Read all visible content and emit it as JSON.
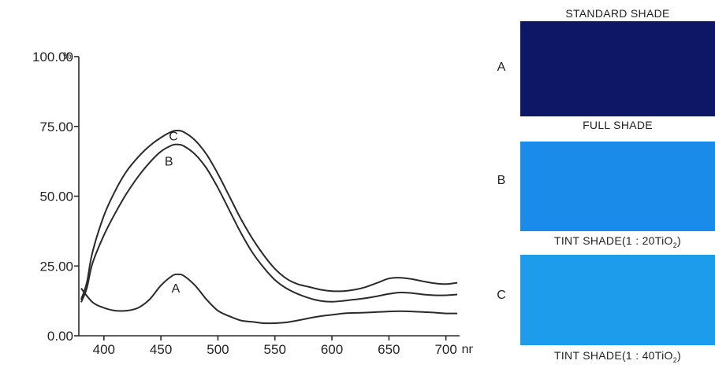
{
  "chart_data": {
    "type": "line",
    "title": "",
    "xlabel": "",
    "ylabel": "",
    "x_unit": "nm",
    "y_unit": "%",
    "xlim": [
      378,
      712
    ],
    "ylim": [
      0,
      100
    ],
    "x_ticks": [
      "400",
      "450",
      "500",
      "550",
      "600",
      "650",
      "700"
    ],
    "x_tick_values": [
      400,
      450,
      500,
      550,
      600,
      650,
      700
    ],
    "y_ticks": [
      "0.00",
      "25.00",
      "50.00",
      "75.00",
      "100.00"
    ],
    "y_tick_values": [
      0,
      25,
      50,
      75,
      100
    ],
    "grid": false,
    "series": [
      {
        "name": "A",
        "x": [
          380,
          390,
          400,
          410,
          420,
          430,
          440,
          450,
          460,
          465,
          470,
          480,
          490,
          500,
          510,
          520,
          530,
          540,
          550,
          560,
          570,
          580,
          590,
          600,
          610,
          620,
          630,
          640,
          650,
          660,
          670,
          680,
          690,
          700,
          710
        ],
        "y": [
          17,
          12,
          10,
          9,
          9,
          10,
          13,
          18,
          21.5,
          22,
          21.5,
          18,
          13,
          9,
          7,
          5.5,
          5,
          4.5,
          4.5,
          4.8,
          5.5,
          6.3,
          7,
          7.5,
          8,
          8.2,
          8.3,
          8.5,
          8.7,
          8.8,
          8.7,
          8.5,
          8.3,
          8,
          8
        ]
      },
      {
        "name": "B",
        "x": [
          380,
          385,
          390,
          400,
          410,
          420,
          430,
          440,
          450,
          460,
          465,
          470,
          480,
          490,
          500,
          510,
          520,
          530,
          540,
          550,
          560,
          570,
          580,
          590,
          600,
          610,
          620,
          630,
          640,
          650,
          660,
          670,
          680,
          690,
          700,
          710
        ],
        "y": [
          12,
          17,
          26,
          36,
          44,
          51,
          57,
          62,
          66,
          68.3,
          68.5,
          68,
          65,
          60,
          53,
          45,
          37,
          30,
          24.5,
          20,
          17,
          15,
          13.5,
          12.5,
          12.2,
          12.5,
          13,
          13.5,
          14.2,
          15,
          15.5,
          15.3,
          14.8,
          14.5,
          14.5,
          14.8
        ]
      },
      {
        "name": "C",
        "x": [
          380,
          385,
          390,
          400,
          410,
          420,
          430,
          440,
          450,
          460,
          465,
          470,
          480,
          490,
          500,
          510,
          520,
          530,
          540,
          550,
          560,
          570,
          580,
          590,
          600,
          610,
          620,
          630,
          640,
          650,
          660,
          670,
          680,
          690,
          700,
          710
        ],
        "y": [
          13,
          19,
          30,
          43,
          52,
          59,
          64,
          68,
          71,
          73.2,
          73.5,
          73,
          70,
          65,
          58,
          50,
          42,
          35,
          29,
          24,
          20.5,
          18.5,
          17.5,
          16.5,
          16,
          16,
          16.5,
          17.5,
          19,
          20.5,
          20.8,
          20.3,
          19.5,
          18.8,
          18.5,
          19
        ]
      }
    ],
    "curve_labels": [
      {
        "text": "A",
        "x": 463,
        "y": 15.5
      },
      {
        "text": "B",
        "x": 457,
        "y": 61
      },
      {
        "text": "C",
        "x": 461,
        "y": 70
      }
    ]
  },
  "swatches": [
    {
      "letter": "A",
      "color": "#0d1766",
      "caption_above": "STANDARD SHADE",
      "caption_prefix": "",
      "caption_sub": "",
      "caption_suffix": ""
    },
    {
      "letter": "B",
      "color": "#1a8be8",
      "caption_above": "FULL SHADE",
      "caption_prefix": "TINT SHADE(1 : 20TiO",
      "caption_sub": "2",
      "caption_suffix": ")"
    },
    {
      "letter": "C",
      "color": "#1e9cec",
      "caption_above": "",
      "caption_prefix": "TINT SHADE(1 : 40TiO",
      "caption_sub": "2",
      "caption_suffix": ")"
    }
  ]
}
